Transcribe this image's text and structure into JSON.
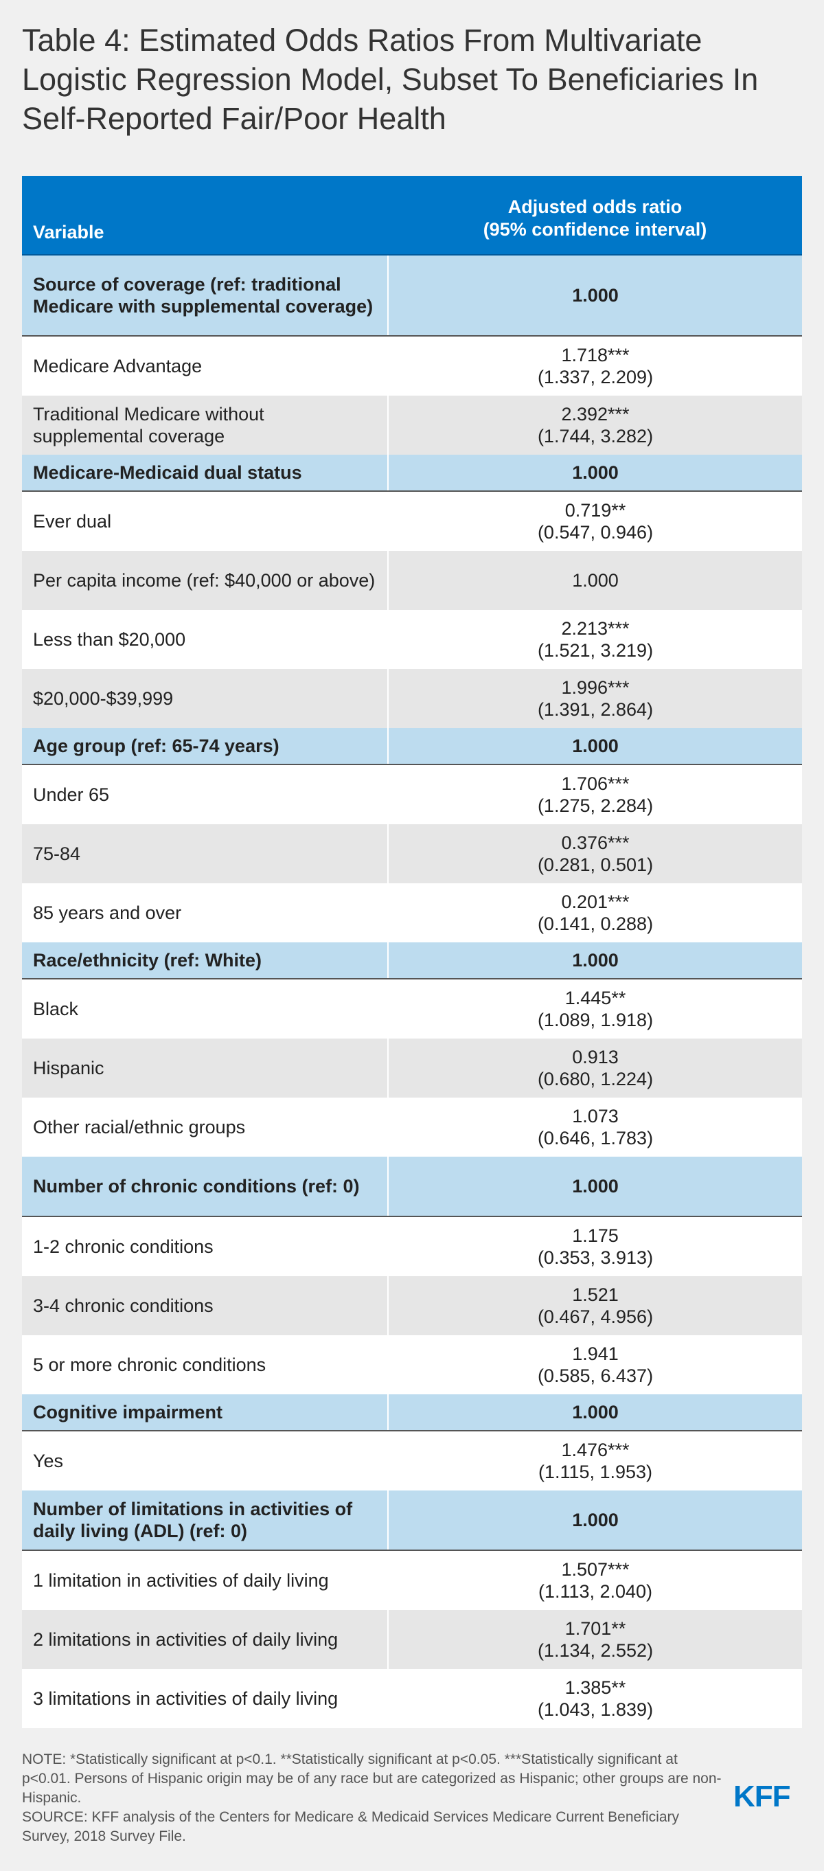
{
  "title": "Table 4: Estimated Odds Ratios From Multivariate Logistic Regression Model, Subset To Beneficiaries In Self-Reported Fair/Poor Health",
  "table": {
    "headers": {
      "variable": "Variable",
      "value_line1": "Adjusted odds ratio",
      "value_line2": "(95% confidence interval)"
    },
    "rows": [
      {
        "label": "Source of coverage (ref: traditional Medicare with supplemental coverage)",
        "value": "1.000",
        "ci": "",
        "section": true
      },
      {
        "label": "Medicare Advantage",
        "value": "1.718***",
        "ci": "(1.337, 2.209)",
        "section": false
      },
      {
        "label": "Traditional Medicare without supplemental coverage",
        "value": "2.392***",
        "ci": "(1.744, 3.282)",
        "section": false
      },
      {
        "label": "Medicare-Medicaid dual status",
        "value": "1.000",
        "ci": "",
        "section": true
      },
      {
        "label": "Ever dual",
        "value": "0.719**",
        "ci": "(0.547, 0.946)",
        "section": false
      },
      {
        "label": "Per capita income (ref: $40,000 or above)",
        "value": "1.000",
        "ci": "",
        "section": false
      },
      {
        "label": "Less than $20,000",
        "value": "2.213***",
        "ci": "(1.521, 3.219)",
        "section": false
      },
      {
        "label": "$20,000-$39,999",
        "value": "1.996***",
        "ci": "(1.391, 2.864)",
        "section": false
      },
      {
        "label": "Age group (ref: 65-74 years)",
        "value": "1.000",
        "ci": "",
        "section": true
      },
      {
        "label": "Under 65",
        "value": "1.706***",
        "ci": "(1.275, 2.284)",
        "section": false
      },
      {
        "label": "75-84",
        "value": "0.376***",
        "ci": "(0.281, 0.501)",
        "section": false
      },
      {
        "label": "85 years and over",
        "value": "0.201***",
        "ci": "(0.141, 0.288)",
        "section": false
      },
      {
        "label": "Race/ethnicity (ref: White)",
        "value": "1.000",
        "ci": "",
        "section": true
      },
      {
        "label": "Black",
        "value": "1.445**",
        "ci": "(1.089, 1.918)",
        "section": false
      },
      {
        "label": "Hispanic",
        "value": "0.913",
        "ci": "(0.680, 1.224)",
        "section": false
      },
      {
        "label": "Other racial/ethnic groups",
        "value": "1.073",
        "ci": "(0.646, 1.783)",
        "section": false
      },
      {
        "label": "Number of chronic conditions (ref: 0)",
        "value": "1.000",
        "ci": "",
        "section": true
      },
      {
        "label": "1-2 chronic conditions",
        "value": "1.175",
        "ci": "(0.353, 3.913)",
        "section": false
      },
      {
        "label": "3-4 chronic conditions",
        "value": "1.521",
        "ci": "(0.467, 4.956)",
        "section": false
      },
      {
        "label": "5 or more chronic conditions",
        "value": "1.941",
        "ci": "(0.585, 6.437)",
        "section": false
      },
      {
        "label": "Cognitive impairment",
        "value": "1.000",
        "ci": "",
        "section": true
      },
      {
        "label": "Yes",
        "value": "1.476***",
        "ci": "(1.115, 1.953)",
        "section": false
      },
      {
        "label": "Number of limitations in activities of daily living (ADL) (ref: 0)",
        "value": "1.000",
        "ci": "",
        "section": true
      },
      {
        "label": "1 limitation in activities of daily living",
        "value": "1.507***",
        "ci": "(1.113, 2.040)",
        "section": false
      },
      {
        "label": "2 limitations in activities of daily living",
        "value": "1.701**",
        "ci": "(1.134, 2.552)",
        "section": false
      },
      {
        "label": "3 limitations in activities of daily living",
        "value": "1.385**",
        "ci": "(1.043, 1.839)",
        "section": false
      }
    ]
  },
  "note": "NOTE: *Statistically significant at p<0.1. **Statistically significant at p<0.05. ***Statistically significant at p<0.01. Persons of Hispanic origin may be of any race but are categorized as Hispanic; other groups are non-Hispanic.",
  "source": "SOURCE: KFF analysis of the Centers for Medicare & Medicaid Services Medicare Current Beneficiary Survey, 2018 Survey File.",
  "logo": "KFF",
  "colors": {
    "header_blue": "#0077c8",
    "section_blue": "#bddcef",
    "row_gray": "#e6e6e6",
    "row_white": "#ffffff",
    "background": "#f0f0f0"
  }
}
